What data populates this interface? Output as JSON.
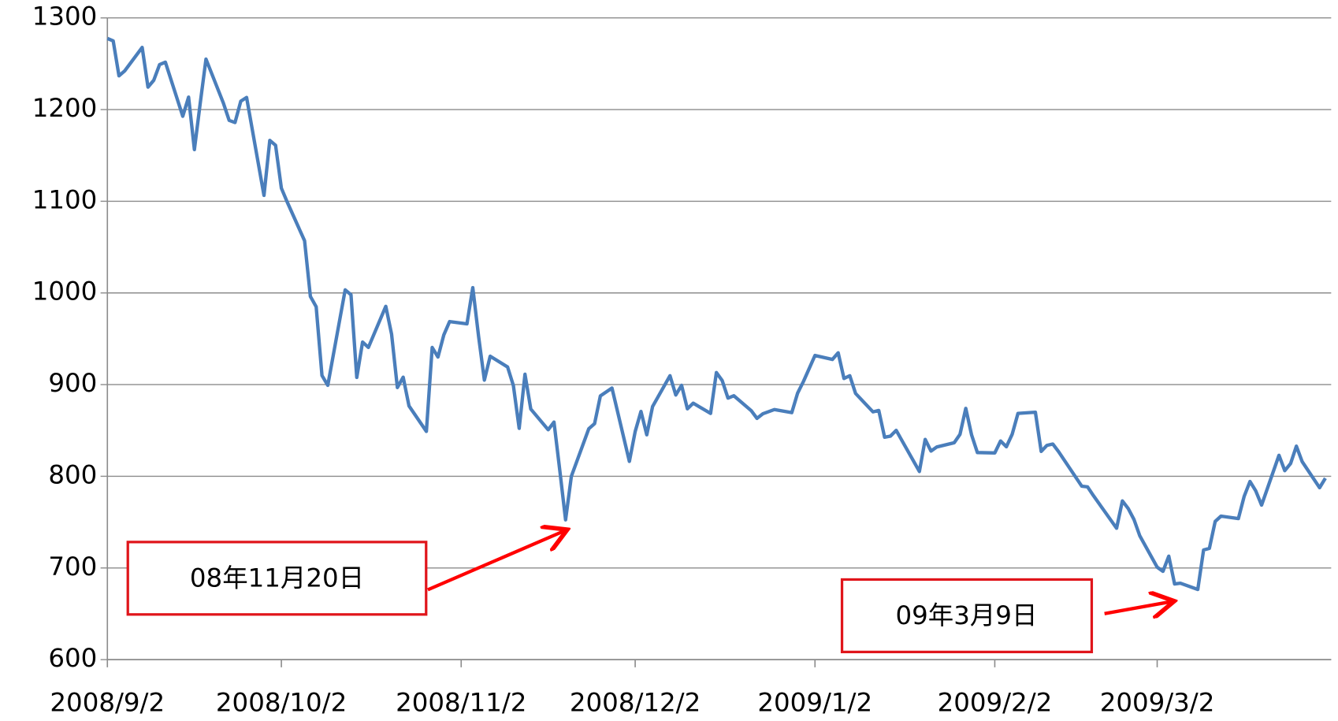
{
  "chart_data": {
    "type": "line",
    "x": [
      "2008/9/2",
      "2008/9/3",
      "2008/9/4",
      "2008/9/5",
      "2008/9/8",
      "2008/9/9",
      "2008/9/10",
      "2008/9/11",
      "2008/9/12",
      "2008/9/15",
      "2008/9/16",
      "2008/9/17",
      "2008/9/18",
      "2008/9/19",
      "2008/9/22",
      "2008/9/23",
      "2008/9/24",
      "2008/9/25",
      "2008/9/26",
      "2008/9/29",
      "2008/9/30",
      "2008/10/1",
      "2008/10/2",
      "2008/10/3",
      "2008/10/6",
      "2008/10/7",
      "2008/10/8",
      "2008/10/9",
      "2008/10/10",
      "2008/10/13",
      "2008/10/14",
      "2008/10/15",
      "2008/10/16",
      "2008/10/17",
      "2008/10/20",
      "2008/10/21",
      "2008/10/22",
      "2008/10/23",
      "2008/10/24",
      "2008/10/27",
      "2008/10/28",
      "2008/10/29",
      "2008/10/30",
      "2008/10/31",
      "2008/11/3",
      "2008/11/4",
      "2008/11/5",
      "2008/11/6",
      "2008/11/7",
      "2008/11/10",
      "2008/11/11",
      "2008/11/12",
      "2008/11/13",
      "2008/11/14",
      "2008/11/17",
      "2008/11/18",
      "2008/11/19",
      "2008/11/20",
      "2008/11/21",
      "2008/11/24",
      "2008/11/25",
      "2008/11/26",
      "2008/11/28",
      "2008/12/1",
      "2008/12/2",
      "2008/12/3",
      "2008/12/4",
      "2008/12/5",
      "2008/12/8",
      "2008/12/9",
      "2008/12/10",
      "2008/12/11",
      "2008/12/12",
      "2008/12/15",
      "2008/12/16",
      "2008/12/17",
      "2008/12/18",
      "2008/12/19",
      "2008/12/22",
      "2008/12/23",
      "2008/12/24",
      "2008/12/26",
      "2008/12/29",
      "2008/12/30",
      "2008/12/31",
      "2009/1/2",
      "2009/1/5",
      "2009/1/6",
      "2009/1/7",
      "2009/1/8",
      "2009/1/9",
      "2009/1/12",
      "2009/1/13",
      "2009/1/14",
      "2009/1/15",
      "2009/1/16",
      "2009/1/20",
      "2009/1/21",
      "2009/1/22",
      "2009/1/23",
      "2009/1/26",
      "2009/1/27",
      "2009/1/28",
      "2009/1/29",
      "2009/1/30",
      "2009/2/2",
      "2009/2/3",
      "2009/2/4",
      "2009/2/5",
      "2009/2/6",
      "2009/2/9",
      "2009/2/10",
      "2009/2/11",
      "2009/2/12",
      "2009/2/13",
      "2009/2/17",
      "2009/2/18",
      "2009/2/19",
      "2009/2/20",
      "2009/2/23",
      "2009/2/24",
      "2009/2/25",
      "2009/2/26",
      "2009/2/27",
      "2009/3/2",
      "2009/3/3",
      "2009/3/4",
      "2009/3/5",
      "2009/3/6",
      "2009/3/9",
      "2009/3/10",
      "2009/3/11",
      "2009/3/12",
      "2009/3/13",
      "2009/3/16",
      "2009/3/17",
      "2009/3/18",
      "2009/3/19",
      "2009/3/20",
      "2009/3/23",
      "2009/3/24",
      "2009/3/25",
      "2009/3/26",
      "2009/3/27",
      "2009/3/30",
      "2009/3/31"
    ],
    "series": [
      {
        "color": "#4a7ebb",
        "values": [
          1277.58,
          1274.98,
          1236.83,
          1242.31,
          1267.79,
          1224.51,
          1232.04,
          1249.05,
          1251.7,
          1192.7,
          1213.6,
          1156.39,
          1206.51,
          1255.08,
          1207.09,
          1188.22,
          1185.87,
          1209.18,
          1213.27,
          1106.39,
          1166.36,
          1161.06,
          1114.28,
          1099.23,
          1056.89,
          996.23,
          984.94,
          909.92,
          899.22,
          1003.35,
          998.01,
          907.84,
          946.43,
          940.55,
          985.4,
          955.05,
          896.78,
          908.11,
          876.77,
          848.92,
          940.51,
          930.09,
          954.09,
          968.75,
          966.3,
          1005.75,
          952.77,
          904.88,
          930.99,
          919.21,
          898.95,
          852.3,
          911.29,
          873.29,
          850.75,
          859.12,
          806.58,
          752.44,
          800.03,
          851.81,
          857.39,
          887.68,
          896.24,
          816.21,
          848.81,
          870.74,
          845.22,
          876.07,
          909.7,
          888.67,
          899.24,
          873.59,
          879.73,
          868.57,
          913.18,
          904.42,
          885.28,
          887.88,
          871.63,
          863.16,
          868.15,
          872.8,
          869.42,
          890.64,
          903.25,
          931.8,
          927.45,
          934.7,
          906.65,
          909.73,
          890.35,
          870.26,
          871.79,
          842.62,
          843.74,
          850.12,
          805.22,
          840.24,
          827.5,
          831.95,
          836.57,
          845.71,
          874.09,
          845.14,
          825.88,
          825.44,
          838.51,
          832.23,
          845.85,
          868.6,
          869.89,
          827.16,
          833.74,
          835.19,
          826.84,
          789.17,
          788.42,
          778.94,
          770.05,
          743.33,
          773.14,
          764.9,
          752.83,
          735.09,
          700.82,
          696.33,
          712.87,
          682.55,
          683.38,
          676.53,
          719.6,
          721.36,
          750.74,
          756.55,
          753.89,
          778.12,
          794.35,
          784.04,
          768.54,
          822.92,
          806.12,
          813.88,
          832.86,
          815.94,
          787.53,
          797.87
        ]
      }
    ],
    "xlim": [
      "2008/9/2",
      "2009/4/1"
    ],
    "xticks": [
      "2008/9/2",
      "2008/10/2",
      "2008/11/2",
      "2008/12/2",
      "2009/1/2",
      "2009/2/2",
      "2009/3/2"
    ],
    "ylim": [
      600,
      1300
    ],
    "yticks": [
      600,
      700,
      800,
      900,
      1000,
      1100,
      1200,
      1300
    ],
    "grid": true,
    "annotations": [
      "08年11月20日",
      "09年3月9日"
    ]
  }
}
